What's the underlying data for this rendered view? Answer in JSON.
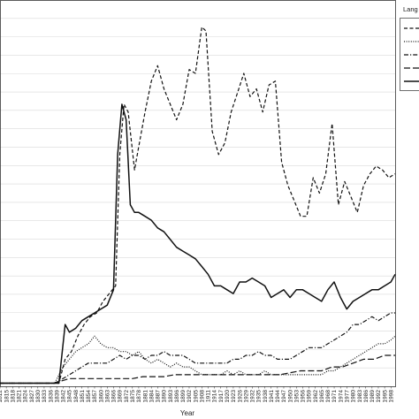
{
  "chart_data": {
    "type": "line",
    "xlabel": "Year",
    "legend_title": "Lang",
    "legend_placement": "right",
    "grid": "horizontal",
    "x_ticks": [
      "1812",
      "1815",
      "1818",
      "1821",
      "1824",
      "1827",
      "1830",
      "1833",
      "1836",
      "1839",
      "1842",
      "1845",
      "1848",
      "1851",
      "1854",
      "1857",
      "1860",
      "1863",
      "1866",
      "1869",
      "1872",
      "1875",
      "1878",
      "1881",
      "1884",
      "1887",
      "1890",
      "1893",
      "1896",
      "1899",
      "1902",
      "1905",
      "1908",
      "1911",
      "1914",
      "1917",
      "1920",
      "1923",
      "1926",
      "1929",
      "1932",
      "1935",
      "1938",
      "1941",
      "1944",
      "1947",
      "1950",
      "1953",
      "1956",
      "1959",
      "1962",
      "1965",
      "1968",
      "1971",
      "1974",
      "1977",
      "1980",
      "1983",
      "1986",
      "1989",
      "1992",
      "1995",
      "1998"
    ],
    "xlim": [
      1812,
      2000
    ],
    "ylim": [
      0,
      100
    ],
    "series": [
      {
        "style": "solid",
        "points": [
          [
            1812,
            0.8
          ],
          [
            1830,
            0.8
          ],
          [
            1840,
            0.8
          ],
          [
            1843,
            16
          ],
          [
            1845,
            14
          ],
          [
            1848,
            15
          ],
          [
            1851,
            17
          ],
          [
            1854,
            18
          ],
          [
            1857,
            19
          ],
          [
            1860,
            20
          ],
          [
            1863,
            21
          ],
          [
            1866,
            25
          ],
          [
            1868,
            60
          ],
          [
            1870,
            73
          ],
          [
            1872,
            69
          ],
          [
            1874,
            47
          ],
          [
            1876,
            45
          ],
          [
            1878,
            45
          ],
          [
            1881,
            44
          ],
          [
            1884,
            43
          ],
          [
            1887,
            41
          ],
          [
            1890,
            40
          ],
          [
            1893,
            38
          ],
          [
            1896,
            36
          ],
          [
            1899,
            35
          ],
          [
            1902,
            34
          ],
          [
            1905,
            33
          ],
          [
            1908,
            31
          ],
          [
            1911,
            29
          ],
          [
            1914,
            26
          ],
          [
            1917,
            26
          ],
          [
            1920,
            25
          ],
          [
            1923,
            24
          ],
          [
            1926,
            27
          ],
          [
            1929,
            27
          ],
          [
            1932,
            28
          ],
          [
            1935,
            27
          ],
          [
            1938,
            26
          ],
          [
            1941,
            23
          ],
          [
            1944,
            24
          ],
          [
            1947,
            25
          ],
          [
            1950,
            23
          ],
          [
            1953,
            25
          ],
          [
            1956,
            25
          ],
          [
            1959,
            24
          ],
          [
            1962,
            23
          ],
          [
            1965,
            22
          ],
          [
            1968,
            25
          ],
          [
            1971,
            27
          ],
          [
            1974,
            23
          ],
          [
            1977,
            20
          ],
          [
            1980,
            22
          ],
          [
            1983,
            23
          ],
          [
            1986,
            24
          ],
          [
            1989,
            25
          ],
          [
            1992,
            25
          ],
          [
            1995,
            26
          ],
          [
            1998,
            27
          ],
          [
            2000,
            29
          ]
        ]
      },
      {
        "style": "dashed",
        "points": [
          [
            1812,
            0.8
          ],
          [
            1830,
            0.8
          ],
          [
            1840,
            0.8
          ],
          [
            1843,
            7
          ],
          [
            1846,
            9
          ],
          [
            1849,
            13
          ],
          [
            1852,
            16
          ],
          [
            1855,
            18
          ],
          [
            1858,
            19
          ],
          [
            1861,
            22
          ],
          [
            1864,
            24
          ],
          [
            1867,
            26
          ],
          [
            1869,
            60
          ],
          [
            1871,
            73
          ],
          [
            1873,
            71
          ],
          [
            1876,
            56
          ],
          [
            1878,
            62
          ],
          [
            1881,
            71
          ],
          [
            1884,
            79
          ],
          [
            1887,
            83
          ],
          [
            1890,
            77
          ],
          [
            1893,
            73
          ],
          [
            1896,
            69
          ],
          [
            1899,
            73
          ],
          [
            1902,
            82
          ],
          [
            1905,
            81
          ],
          [
            1908,
            93
          ],
          [
            1910,
            92
          ],
          [
            1913,
            66
          ],
          [
            1916,
            60
          ],
          [
            1919,
            63
          ],
          [
            1922,
            71
          ],
          [
            1925,
            76
          ],
          [
            1928,
            81
          ],
          [
            1931,
            75
          ],
          [
            1934,
            77
          ],
          [
            1937,
            71
          ],
          [
            1940,
            78
          ],
          [
            1943,
            79
          ],
          [
            1946,
            58
          ],
          [
            1949,
            52
          ],
          [
            1952,
            48
          ],
          [
            1955,
            44
          ],
          [
            1958,
            44
          ],
          [
            1961,
            54
          ],
          [
            1964,
            50
          ],
          [
            1967,
            55
          ],
          [
            1970,
            68
          ],
          [
            1973,
            47
          ],
          [
            1976,
            53
          ],
          [
            1979,
            49
          ],
          [
            1982,
            45
          ],
          [
            1985,
            52
          ],
          [
            1988,
            55
          ],
          [
            1991,
            57
          ],
          [
            1994,
            56
          ],
          [
            1997,
            54
          ],
          [
            2000,
            55
          ]
        ]
      },
      {
        "style": "dotted",
        "points": [
          [
            1812,
            0.8
          ],
          [
            1838,
            0.8
          ],
          [
            1842,
            5
          ],
          [
            1845,
            7
          ],
          [
            1848,
            9
          ],
          [
            1851,
            10
          ],
          [
            1854,
            11
          ],
          [
            1857,
            13
          ],
          [
            1860,
            11
          ],
          [
            1863,
            10
          ],
          [
            1866,
            10
          ],
          [
            1869,
            9
          ],
          [
            1872,
            9
          ],
          [
            1875,
            8
          ],
          [
            1878,
            9
          ],
          [
            1881,
            7
          ],
          [
            1884,
            6
          ],
          [
            1887,
            7
          ],
          [
            1890,
            6
          ],
          [
            1893,
            5
          ],
          [
            1896,
            6
          ],
          [
            1899,
            5
          ],
          [
            1902,
            5
          ],
          [
            1905,
            4
          ],
          [
            1908,
            3
          ],
          [
            1911,
            3
          ],
          [
            1914,
            3
          ],
          [
            1917,
            3
          ],
          [
            1920,
            4
          ],
          [
            1923,
            3
          ],
          [
            1926,
            4
          ],
          [
            1929,
            3
          ],
          [
            1932,
            3
          ],
          [
            1935,
            3
          ],
          [
            1938,
            4
          ],
          [
            1941,
            3
          ],
          [
            1944,
            3
          ],
          [
            1947,
            3
          ],
          [
            1950,
            3
          ],
          [
            1953,
            3
          ],
          [
            1956,
            3
          ],
          [
            1959,
            3
          ],
          [
            1962,
            3
          ],
          [
            1965,
            3
          ],
          [
            1968,
            4
          ],
          [
            1971,
            4
          ],
          [
            1974,
            5
          ],
          [
            1977,
            6
          ],
          [
            1980,
            7
          ],
          [
            1983,
            8
          ],
          [
            1986,
            9
          ],
          [
            1989,
            10
          ],
          [
            1992,
            11
          ],
          [
            1995,
            11
          ],
          [
            1998,
            12
          ],
          [
            2000,
            13
          ]
        ]
      },
      {
        "style": "dashdot",
        "points": [
          [
            1812,
            0.8
          ],
          [
            1838,
            0.8
          ],
          [
            1842,
            2
          ],
          [
            1845,
            3
          ],
          [
            1848,
            4
          ],
          [
            1851,
            5
          ],
          [
            1854,
            6
          ],
          [
            1857,
            6
          ],
          [
            1860,
            6
          ],
          [
            1863,
            6
          ],
          [
            1866,
            7
          ],
          [
            1869,
            8
          ],
          [
            1872,
            7
          ],
          [
            1875,
            8
          ],
          [
            1878,
            8
          ],
          [
            1881,
            7
          ],
          [
            1884,
            8
          ],
          [
            1887,
            8
          ],
          [
            1890,
            9
          ],
          [
            1893,
            8
          ],
          [
            1896,
            8
          ],
          [
            1899,
            8
          ],
          [
            1902,
            7
          ],
          [
            1905,
            6
          ],
          [
            1908,
            6
          ],
          [
            1911,
            6
          ],
          [
            1914,
            6
          ],
          [
            1917,
            6
          ],
          [
            1920,
            6
          ],
          [
            1923,
            7
          ],
          [
            1926,
            7
          ],
          [
            1929,
            8
          ],
          [
            1932,
            8
          ],
          [
            1935,
            9
          ],
          [
            1938,
            8
          ],
          [
            1941,
            8
          ],
          [
            1944,
            7
          ],
          [
            1947,
            7
          ],
          [
            1950,
            7
          ],
          [
            1953,
            8
          ],
          [
            1956,
            9
          ],
          [
            1959,
            10
          ],
          [
            1962,
            10
          ],
          [
            1965,
            10
          ],
          [
            1968,
            11
          ],
          [
            1971,
            12
          ],
          [
            1974,
            13
          ],
          [
            1977,
            14
          ],
          [
            1980,
            16
          ],
          [
            1983,
            16
          ],
          [
            1986,
            17
          ],
          [
            1989,
            18
          ],
          [
            1992,
            17
          ],
          [
            1995,
            18
          ],
          [
            1998,
            19
          ],
          [
            2000,
            19
          ]
        ]
      },
      {
        "style": "longdash",
        "points": [
          [
            1812,
            0.8
          ],
          [
            1838,
            0.8
          ],
          [
            1842,
            1.5
          ],
          [
            1845,
            2
          ],
          [
            1850,
            2
          ],
          [
            1855,
            2
          ],
          [
            1860,
            2
          ],
          [
            1865,
            2
          ],
          [
            1870,
            2
          ],
          [
            1875,
            2
          ],
          [
            1880,
            2.5
          ],
          [
            1885,
            2.5
          ],
          [
            1890,
            2.5
          ],
          [
            1895,
            3
          ],
          [
            1900,
            3
          ],
          [
            1905,
            3
          ],
          [
            1910,
            3
          ],
          [
            1915,
            3
          ],
          [
            1920,
            3
          ],
          [
            1925,
            3
          ],
          [
            1930,
            3
          ],
          [
            1935,
            3
          ],
          [
            1940,
            3
          ],
          [
            1945,
            3
          ],
          [
            1950,
            3.5
          ],
          [
            1955,
            4
          ],
          [
            1960,
            4
          ],
          [
            1965,
            4
          ],
          [
            1970,
            5
          ],
          [
            1975,
            5
          ],
          [
            1980,
            6
          ],
          [
            1985,
            7
          ],
          [
            1990,
            7
          ],
          [
            1995,
            8
          ],
          [
            2000,
            8
          ]
        ]
      }
    ]
  }
}
